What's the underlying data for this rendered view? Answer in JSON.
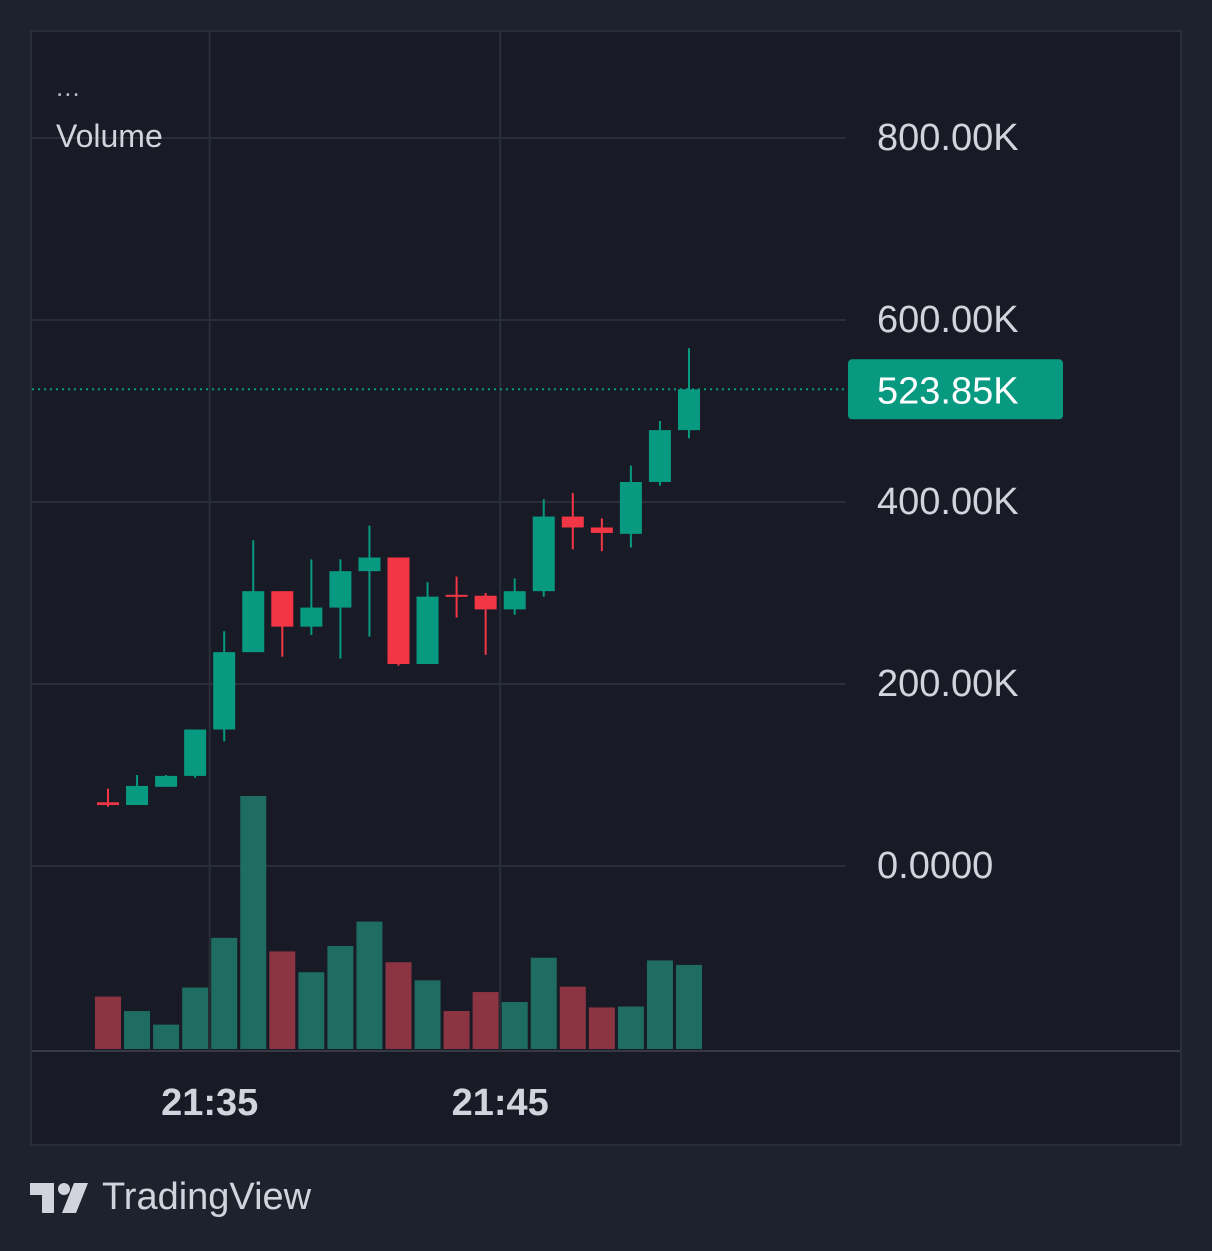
{
  "legend": {
    "dots": "...",
    "title": "Volume"
  },
  "brand": {
    "name": "TradingView",
    "logo": "tradingview-logo-icon"
  },
  "colors": {
    "background": "#1e222d",
    "pane": "#181b25",
    "up": "#089981",
    "down": "#f23645",
    "up_volume": "#1e6c62",
    "down_volume": "#8c3442",
    "grid": "#2a2e39",
    "axis_text": "#d1d4dc",
    "last_value_label": "#089981"
  },
  "chart_data": {
    "type": "candlestick",
    "title": "",
    "xlabel": "",
    "ylabel": "",
    "ylim": [
      -30000,
      880000
    ],
    "y_ticks": [
      {
        "value": 800000,
        "label": "800.00K"
      },
      {
        "value": 600000,
        "label": "600.00K"
      },
      {
        "value": 400000,
        "label": "400.00K"
      },
      {
        "value": 200000,
        "label": "200.00K"
      },
      {
        "value": 0,
        "label": "0.0000"
      }
    ],
    "x_ticks": [
      {
        "index": 3.5,
        "label": "21:35"
      },
      {
        "index": 13.5,
        "label": "21:45"
      }
    ],
    "last_value": {
      "value": 523850,
      "label": "523.85K"
    },
    "grid": true,
    "legend": "top-left",
    "candles": [
      {
        "open": 70000,
        "high": 85000,
        "low": 65000,
        "close": 67000
      },
      {
        "open": 67000,
        "high": 100000,
        "low": 67000,
        "close": 88000
      },
      {
        "open": 87000,
        "high": 100000,
        "low": 87000,
        "close": 99000
      },
      {
        "open": 99000,
        "high": 150000,
        "low": 97000,
        "close": 150000
      },
      {
        "open": 150000,
        "high": 258000,
        "low": 137000,
        "close": 235000
      },
      {
        "open": 235000,
        "high": 358000,
        "low": 235000,
        "close": 302000
      },
      {
        "open": 302000,
        "high": 302000,
        "low": 230000,
        "close": 263000
      },
      {
        "open": 263000,
        "high": 337000,
        "low": 254000,
        "close": 284000
      },
      {
        "open": 284000,
        "high": 337000,
        "low": 228000,
        "close": 324000
      },
      {
        "open": 324000,
        "high": 374000,
        "low": 252000,
        "close": 339000
      },
      {
        "open": 339000,
        "high": 339000,
        "low": 220000,
        "close": 222000
      },
      {
        "open": 222000,
        "high": 312000,
        "low": 222000,
        "close": 296000
      },
      {
        "open": 298000,
        "high": 318000,
        "low": 273000,
        "close": 296000
      },
      {
        "open": 297000,
        "high": 300000,
        "low": 232000,
        "close": 282000
      },
      {
        "open": 282000,
        "high": 316000,
        "low": 276000,
        "close": 302000
      },
      {
        "open": 302000,
        "high": 403000,
        "low": 296000,
        "close": 384000
      },
      {
        "open": 384000,
        "high": 410000,
        "low": 348000,
        "close": 372000
      },
      {
        "open": 372000,
        "high": 382000,
        "low": 346000,
        "close": 366000
      },
      {
        "open": 365000,
        "high": 440000,
        "low": 350000,
        "close": 422000
      },
      {
        "open": 422000,
        "high": 489000,
        "low": 418000,
        "close": 479000
      },
      {
        "open": 479000,
        "high": 569000,
        "low": 470000,
        "close": 523850
      }
    ],
    "volumes": [
      {
        "value": 58,
        "direction": "down"
      },
      {
        "value": 42,
        "direction": "up"
      },
      {
        "value": 27,
        "direction": "up"
      },
      {
        "value": 68,
        "direction": "up"
      },
      {
        "value": 123,
        "direction": "up"
      },
      {
        "value": 280,
        "direction": "up"
      },
      {
        "value": 108,
        "direction": "down"
      },
      {
        "value": 85,
        "direction": "up"
      },
      {
        "value": 114,
        "direction": "up"
      },
      {
        "value": 141,
        "direction": "up"
      },
      {
        "value": 96,
        "direction": "down"
      },
      {
        "value": 76,
        "direction": "up"
      },
      {
        "value": 42,
        "direction": "down"
      },
      {
        "value": 63,
        "direction": "down"
      },
      {
        "value": 52,
        "direction": "up"
      },
      {
        "value": 101,
        "direction": "up"
      },
      {
        "value": 69,
        "direction": "down"
      },
      {
        "value": 46,
        "direction": "down"
      },
      {
        "value": 47,
        "direction": "up"
      },
      {
        "value": 98,
        "direction": "up"
      },
      {
        "value": 93,
        "direction": "up"
      }
    ]
  }
}
